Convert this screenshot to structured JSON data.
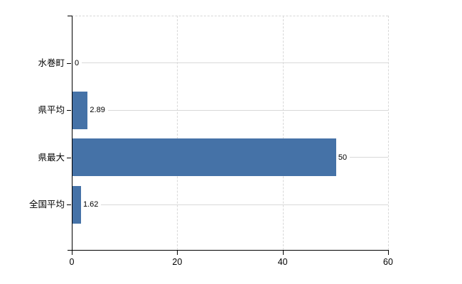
{
  "chart_data": {
    "type": "bar",
    "orientation": "horizontal",
    "title": "",
    "xlabel": "",
    "ylabel": "",
    "categories": [
      "水巻町",
      "県平均",
      "県最大",
      "全国平均"
    ],
    "values": [
      0,
      2.89,
      50,
      1.62
    ],
    "value_labels": [
      "0",
      "2.89",
      "50",
      "1.62"
    ],
    "xlim": [
      0,
      60
    ],
    "x_ticks": [
      0,
      20,
      40,
      60
    ],
    "x_tick_labels": [
      "0",
      "20",
      "40",
      "60"
    ],
    "grid": true,
    "legend": false,
    "colors": {
      "bar": "#4572a7",
      "grid": "#d8d8d8",
      "axis": "#000000",
      "text": "#000000",
      "background": "#ffffff"
    }
  }
}
